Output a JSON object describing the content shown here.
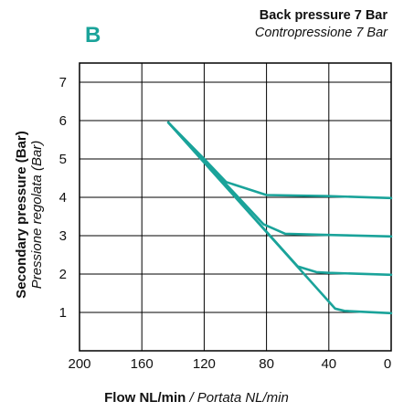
{
  "chart_data": {
    "type": "line",
    "panel_label": "B",
    "title": "Back pressure 7 Bar",
    "subtitle": "Contropressione 7 Bar",
    "xlabel": "Flow NL/min",
    "xlabel_alt": "/ Portata NL/min",
    "ylabel": "Secondary pressure (Bar)",
    "ylabel_alt": "Pressione regolata (Bar)",
    "xlim": [
      200,
      0
    ],
    "ylim": [
      0,
      7.5
    ],
    "x_ticks": [
      200,
      160,
      120,
      80,
      40,
      0
    ],
    "y_ticks": [
      1,
      2,
      3,
      4,
      5,
      6,
      7
    ],
    "grid": true,
    "line_color": "#1aa39a",
    "accent_color": "#1aa39a",
    "series": [
      {
        "x": [
          143,
          120,
          106,
          80,
          40,
          0
        ],
        "y": [
          5.95,
          5.0,
          4.4,
          4.06,
          4.03,
          3.98
        ]
      },
      {
        "x": [
          143,
          82,
          68,
          40,
          0
        ],
        "y": [
          5.95,
          3.3,
          3.05,
          3.02,
          2.98
        ]
      },
      {
        "x": [
          143,
          60,
          48,
          40,
          0
        ],
        "y": [
          5.95,
          2.2,
          2.05,
          2.03,
          1.98
        ]
      },
      {
        "x": [
          143,
          36,
          30,
          20,
          0
        ],
        "y": [
          5.95,
          1.1,
          1.04,
          1.02,
          0.98
        ]
      }
    ]
  }
}
